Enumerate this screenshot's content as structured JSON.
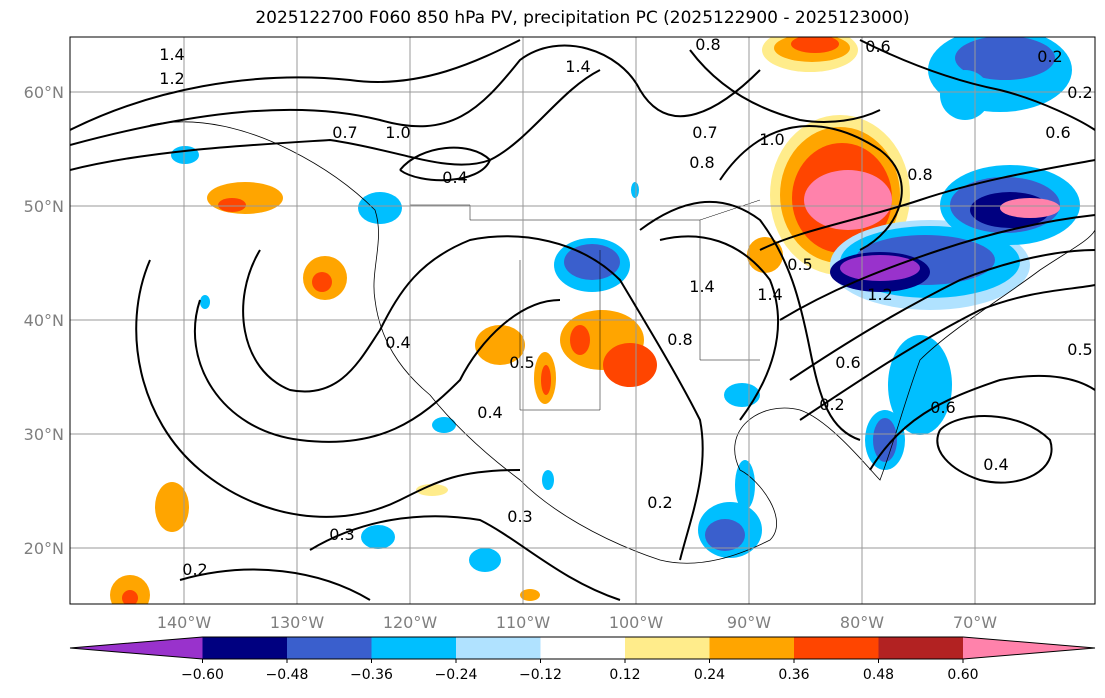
{
  "title": "2025122700 F060 850 hPa PV, precipitation PC (2025122900 - 2025123000)",
  "chart_data": {
    "type": "map",
    "title": "2025122700 F060 850 hPa PV, precipitation PC (2025122900 - 2025123000)",
    "lon_ticks": [
      "140°W",
      "130°W",
      "120°W",
      "110°W",
      "100°W",
      "90°W",
      "80°W",
      "70°W"
    ],
    "lat_ticks": [
      "60°N",
      "50°N",
      "40°N",
      "30°N",
      "20°N"
    ],
    "lon_range": [
      -150,
      -59.5
    ],
    "lat_range": [
      15,
      65
    ],
    "grid": true,
    "colorbar": {
      "ticks": [
        "−0.60",
        "−0.48",
        "−0.36",
        "−0.24",
        "−0.12",
        "0.12",
        "0.24",
        "0.36",
        "0.48",
        "0.60"
      ],
      "colors": [
        "#9932cc",
        "#000080",
        "#3a5fcd",
        "#00bfff",
        "#b0e2ff",
        "#ffffff",
        "#ffec8b",
        "#ffa500",
        "#ff4500",
        "#b22222",
        "#ff82ab"
      ],
      "extend": "both",
      "placement": "bottom"
    },
    "contour_labels": [
      "1.4",
      "1.2",
      "1.4",
      "0.7",
      "1.0",
      "0.4",
      "0.8",
      "0.6",
      "0.2",
      "0.7",
      "0.8",
      "1.0",
      "1.4",
      "0.8",
      "0.6",
      "0.4",
      "0.5",
      "0.4",
      "0.6",
      "0.3",
      "0.2",
      "0.2",
      "0.2",
      "0.5",
      "0.5",
      "0.3",
      "0.4",
      "0.2",
      "0.6",
      "0.8",
      "1.4",
      "1.2"
    ]
  }
}
